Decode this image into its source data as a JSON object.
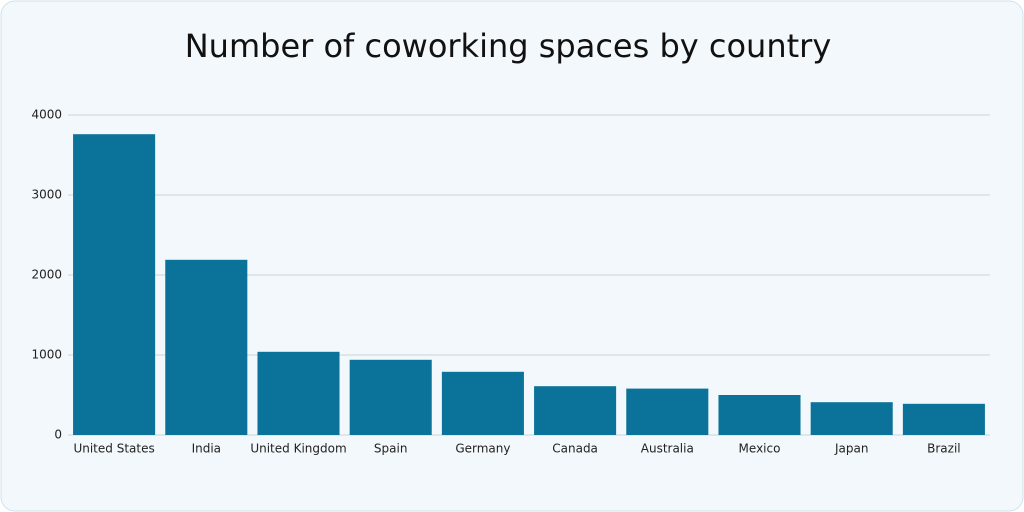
{
  "chart_data": {
    "type": "bar",
    "title": "Number of coworking spaces by country",
    "categories": [
      "United States",
      "India",
      "United Kingdom",
      "Spain",
      "Germany",
      "Canada",
      "Australia",
      "Mexico",
      "Japan",
      "Brazil"
    ],
    "values": [
      3760,
      2190,
      1040,
      940,
      790,
      610,
      580,
      500,
      410,
      390
    ],
    "color": "#0b7399",
    "ylim": [
      0,
      4000
    ],
    "yticks": [
      0,
      1000,
      2000,
      3000,
      4000
    ],
    "grid": true
  }
}
